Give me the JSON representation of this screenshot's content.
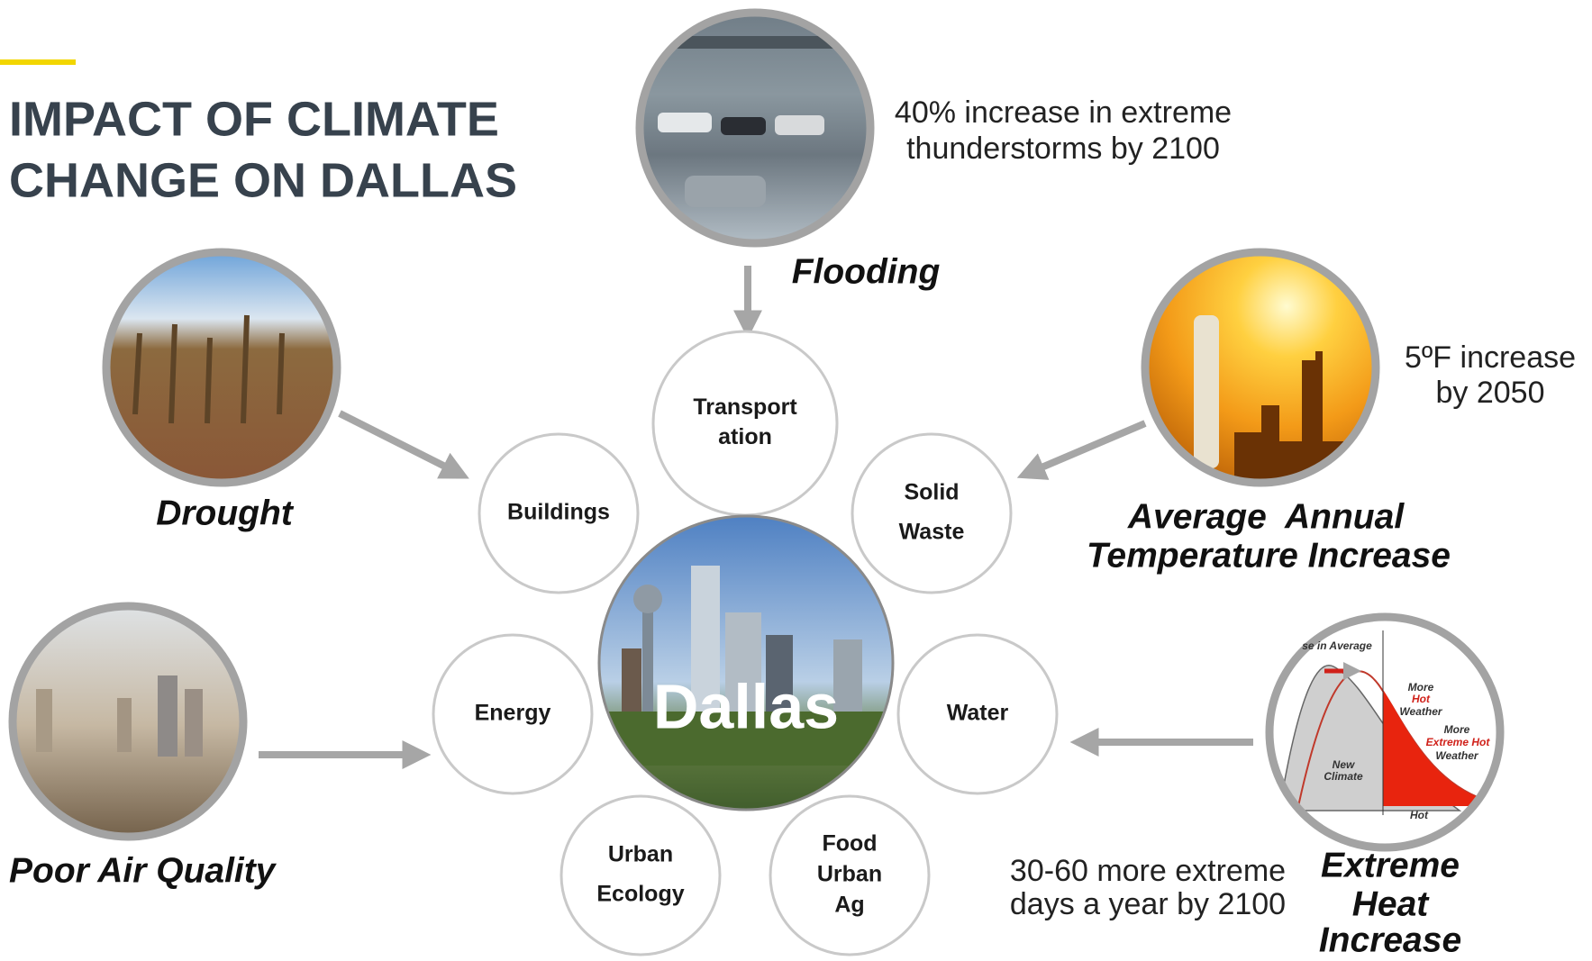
{
  "header": {
    "title_lines": [
      "IMPACT OF CLIMATE",
      "CHANGE ON DALLAS"
    ]
  },
  "center": {
    "label": "Dallas"
  },
  "sectors": [
    {
      "lines": [
        "Transport",
        "ation"
      ]
    },
    {
      "lines": [
        "Buildings"
      ]
    },
    {
      "lines": [
        "Solid",
        "Waste"
      ]
    },
    {
      "lines": [
        "Energy"
      ]
    },
    {
      "lines": [
        "Water"
      ]
    },
    {
      "lines": [
        "Urban",
        "Ecology"
      ]
    },
    {
      "lines": [
        "Food",
        "Urban",
        "Ag"
      ]
    }
  ],
  "hazards": [
    {
      "label_lines": [
        "Flooding"
      ],
      "note_lines": [
        "40% increase in extreme",
        "thunderstorms by 2100"
      ]
    },
    {
      "label_lines": [
        "Drought"
      ]
    },
    {
      "label_lines": [
        "Average  Annual",
        "Temperature Increase"
      ],
      "note_lines": [
        "5ºF increase",
        "by 2050"
      ]
    },
    {
      "label_lines": [
        "Poor Air Quality"
      ]
    },
    {
      "label_lines": [
        "Extreme",
        "Heat",
        "Increase"
      ],
      "note_lines": [
        "30-60 more extreme",
        "days a year by 2100"
      ],
      "image_text": [
        "se in Average",
        "More",
        "Hot",
        "Weather",
        "More",
        "Extreme Hot",
        "Weather",
        "New",
        "Climate",
        "Hot"
      ]
    }
  ]
}
